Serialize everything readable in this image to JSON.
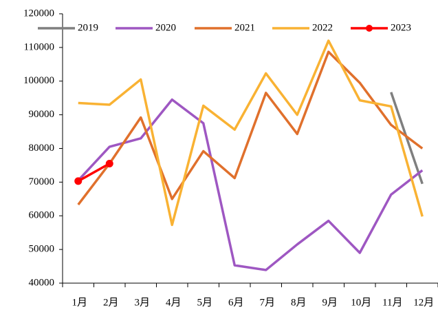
{
  "chart_data": {
    "type": "line",
    "categories": [
      "1月",
      "2月",
      "3月",
      "4月",
      "5月",
      "6月",
      "7月",
      "8月",
      "9月",
      "10月",
      "11月",
      "12月"
    ],
    "series": [
      {
        "name": "2019",
        "color": "#7f7f7f",
        "values": [
          null,
          null,
          null,
          null,
          null,
          null,
          null,
          null,
          null,
          null,
          96700,
          69500
        ]
      },
      {
        "name": "2020",
        "color": "#9e57c2",
        "values": [
          70500,
          80500,
          83000,
          94500,
          87500,
          45300,
          43900,
          51500,
          58500,
          49000,
          66300,
          73500
        ]
      },
      {
        "name": "2021",
        "color": "#e0702c",
        "values": [
          63300,
          75500,
          89200,
          65000,
          79200,
          71200,
          96500,
          84300,
          108700,
          99500,
          87000,
          80000
        ]
      },
      {
        "name": "2022",
        "color": "#f9b233",
        "values": [
          93500,
          93000,
          100500,
          57300,
          92700,
          85600,
          102300,
          90000,
          112000,
          94300,
          92500,
          59800
        ]
      },
      {
        "name": "2023",
        "color": "#ff0000",
        "values": [
          70300,
          75500,
          null,
          null,
          null,
          null,
          null,
          null,
          null,
          null,
          null,
          null
        ],
        "markers": true
      }
    ],
    "ylim": [
      40000,
      120000
    ],
    "yticks": [
      40000,
      50000,
      60000,
      70000,
      80000,
      90000,
      100000,
      110000,
      120000
    ],
    "legend": "top"
  }
}
